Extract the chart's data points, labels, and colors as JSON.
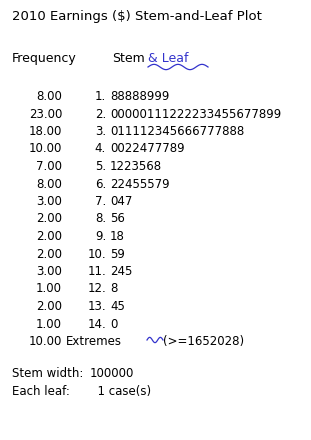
{
  "title": "2010 Earnings ($) Stem-and-Leaf Plot",
  "header_freq": "Frequency",
  "header_stem": "Stem",
  "header_amp": "&",
  "header_leaf": "Leaf",
  "rows": [
    {
      "freq": "8.00",
      "stem": "1.",
      "leaf": "88888999"
    },
    {
      "freq": "23.00",
      "stem": "2.",
      "leaf": "00000111222233455677899"
    },
    {
      "freq": "18.00",
      "stem": "3.",
      "leaf": "011112345666777888"
    },
    {
      "freq": "10.00",
      "stem": "4.",
      "leaf": "0022477789"
    },
    {
      "freq": "7.00",
      "stem": "5.",
      "leaf": "1223568"
    },
    {
      "freq": "8.00",
      "stem": "6.",
      "leaf": "22455579"
    },
    {
      "freq": "3.00",
      "stem": "7.",
      "leaf": "047"
    },
    {
      "freq": "2.00",
      "stem": "8.",
      "leaf": "56"
    },
    {
      "freq": "2.00",
      "stem": "9.",
      "leaf": "18"
    },
    {
      "freq": "2.00",
      "stem": "10.",
      "leaf": "59"
    },
    {
      "freq": "3.00",
      "stem": "11.",
      "leaf": "245"
    },
    {
      "freq": "1.00",
      "stem": "12.",
      "leaf": "8"
    },
    {
      "freq": "2.00",
      "stem": "13.",
      "leaf": "45"
    },
    {
      "freq": "1.00",
      "stem": "14.",
      "leaf": "0"
    },
    {
      "freq": "10.00",
      "stem": "Extremes",
      "leaf": "(>=1652028)"
    }
  ],
  "footer_lines": [
    [
      "Stem width:",
      "100000"
    ],
    [
      "Each leaf:",
      "  1 case(s)"
    ]
  ],
  "bg_color": "#ffffff",
  "text_color": "#000000",
  "blue_color": "#3333cc",
  "title_fontsize": 9.5,
  "body_fontsize": 8.5,
  "header_fontsize": 9.0
}
